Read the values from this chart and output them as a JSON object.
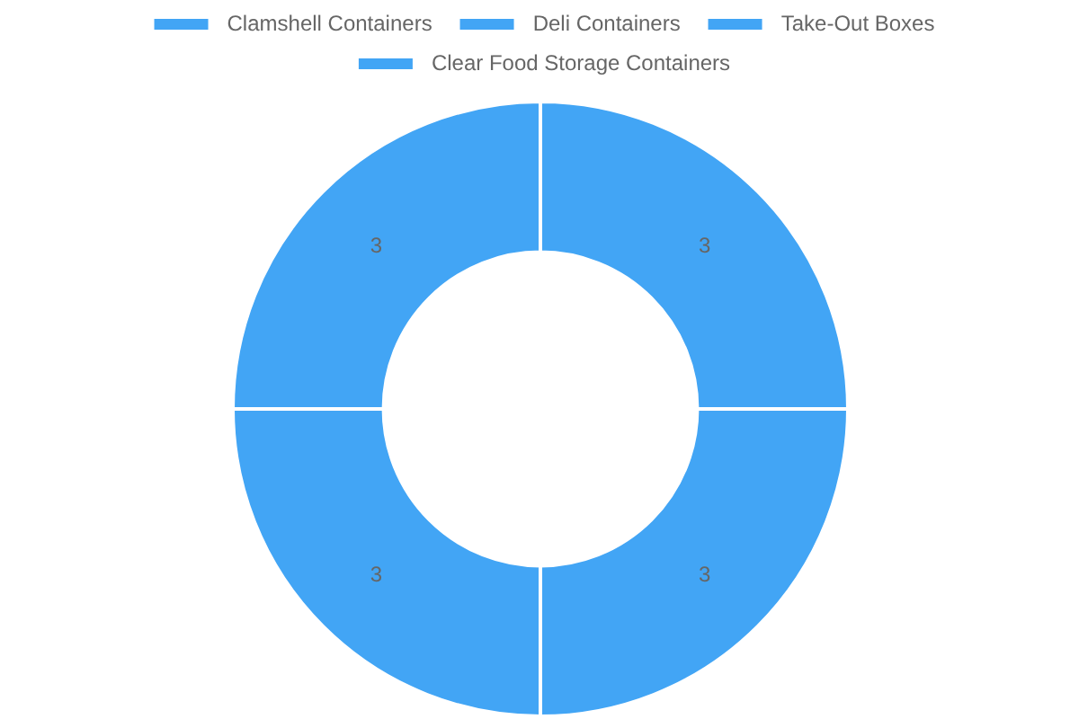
{
  "chart_data": {
    "type": "donut",
    "categories": [
      "Clamshell Containers",
      "Deli Containers",
      "Take-Out Boxes",
      "Clear Food Storage Containers"
    ],
    "values": [
      3,
      3,
      3,
      3
    ],
    "colors": [
      "#42a5f5",
      "#42a5f5",
      "#42a5f5",
      "#42a5f5"
    ],
    "data_labels": true,
    "legend": "top"
  }
}
